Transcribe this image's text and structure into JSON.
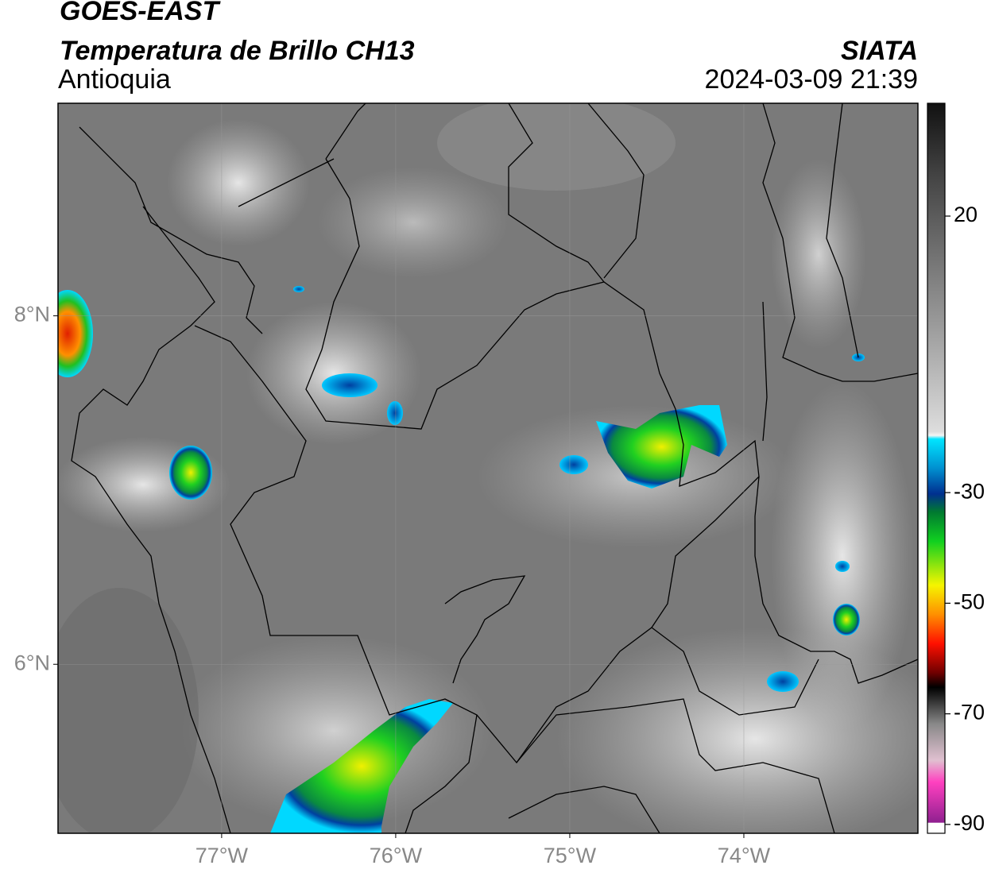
{
  "header": {
    "title": "GOES-EAST",
    "subtitle": "Temperatura de Brillo CH13",
    "region": "Antioquia",
    "source": "SIATA",
    "datetime": "2024-03-09 21:39"
  },
  "map": {
    "xlim": [
      -77.94,
      -73.0
    ],
    "ylim": [
      5.03,
      9.22
    ],
    "xticks": [
      {
        "value": -77,
        "label": "77°W"
      },
      {
        "value": -76,
        "label": "76°W"
      },
      {
        "value": -75,
        "label": "75°W"
      },
      {
        "value": -74,
        "label": "74°W"
      }
    ],
    "yticks": [
      {
        "value": 8,
        "label": "8°N"
      },
      {
        "value": 6,
        "label": "6°N"
      }
    ],
    "grid": true
  },
  "colorbar": {
    "lim": [
      -91.6,
      40.4
    ],
    "ticks": [
      20,
      -30,
      -50,
      -70,
      -90
    ]
  }
}
